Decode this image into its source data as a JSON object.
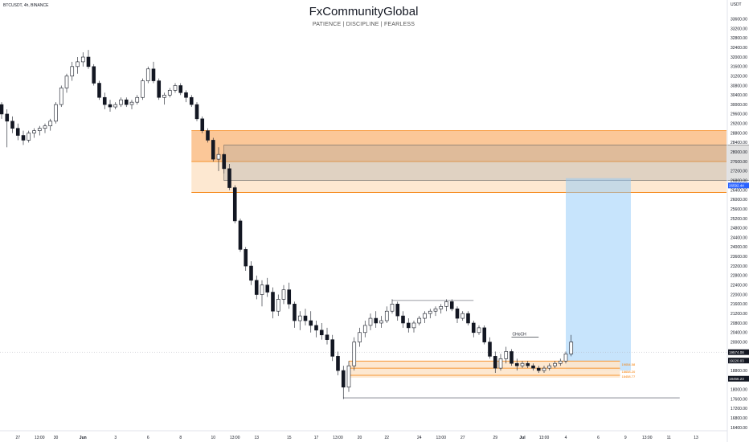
{
  "header": {
    "ticker": "BTCUSDT, 4h, BINANCE",
    "title": "FxCommunityGlobal",
    "subtitle": "PATIENCE | DISCIPLINE | FEARLESS",
    "unit": "USDT"
  },
  "colors": {
    "up": "#131722",
    "down": "#131722",
    "supply_zone": "#f9b475",
    "supply_zone_light": "#fde5cc",
    "zone_line": "#f57c00",
    "target_box": "#90caf9",
    "target_box_top": "#bbdefb",
    "grey_box": "#9e9e9e",
    "price_marker": "#2962ff"
  },
  "chart_data": {
    "type": "candlestick",
    "ylim": [
      16400,
      34200
    ],
    "yticks": [
      16400,
      16800,
      17200,
      17600,
      18000,
      18400,
      18800,
      19200,
      19600,
      20000,
      20400,
      20800,
      21200,
      21600,
      22000,
      22400,
      22800,
      23200,
      23600,
      24000,
      24400,
      24800,
      25200,
      25600,
      26000,
      26400,
      26800,
      27200,
      27600,
      28000,
      28400,
      28800,
      29200,
      29600,
      30000,
      30400,
      30800,
      31200,
      31600,
      32000,
      32400,
      32800,
      33200,
      33600
    ],
    "ytick_labels": [
      "16400.00",
      "16800.00",
      "17200.00",
      "17600.00",
      "18000.00",
      "18400.00",
      "18800.00",
      "19200.00",
      "19600.00",
      "20000.00",
      "20400.00",
      "20800.00",
      "21200.00",
      "21600.00",
      "22000.00",
      "22400.00",
      "22800.00",
      "23200.00",
      "23600.00",
      "24000.00",
      "24400.00",
      "24800.00",
      "25200.00",
      "25600.00",
      "26000.00",
      "26400.00",
      "26800.00",
      "27200.00",
      "27600.00",
      "28000.00",
      "28400.00",
      "28800.00",
      "29200.00",
      "29600.00",
      "30000.00",
      "30400.00",
      "30800.00",
      "31200.00",
      "31600.00",
      "32000.00",
      "32400.00",
      "32800.00",
      "33200.00",
      "33600.00"
    ],
    "xticks": [
      {
        "i": 3,
        "label": "27"
      },
      {
        "i": 7,
        "label": "13:00"
      },
      {
        "i": 10,
        "label": "30"
      },
      {
        "i": 15,
        "label": "Jun",
        "bold": true
      },
      {
        "i": 21,
        "label": "3"
      },
      {
        "i": 27,
        "label": "6"
      },
      {
        "i": 33,
        "label": "8"
      },
      {
        "i": 39,
        "label": "10"
      },
      {
        "i": 43,
        "label": "13:00"
      },
      {
        "i": 47,
        "label": "13"
      },
      {
        "i": 53,
        "label": "15"
      },
      {
        "i": 58,
        "label": "17"
      },
      {
        "i": 62,
        "label": "13:00"
      },
      {
        "i": 66,
        "label": "20"
      },
      {
        "i": 71,
        "label": "22"
      },
      {
        "i": 77,
        "label": "24"
      },
      {
        "i": 81,
        "label": "13:00"
      },
      {
        "i": 85,
        "label": "27"
      },
      {
        "i": 91,
        "label": "29"
      },
      {
        "i": 96,
        "label": "Jul",
        "bold": true
      },
      {
        "i": 100,
        "label": "13:00"
      },
      {
        "i": 104,
        "label": "4"
      },
      {
        "i": 110,
        "label": "6"
      },
      {
        "i": 115,
        "label": "9"
      },
      {
        "i": 119,
        "label": "13:00"
      },
      {
        "i": 123,
        "label": "11"
      },
      {
        "i": 128,
        "label": "13"
      }
    ],
    "candles": [
      [
        30000,
        30100,
        29400,
        29600
      ],
      [
        29600,
        29800,
        28200,
        29300
      ],
      [
        29300,
        29500,
        28800,
        29000
      ],
      [
        29000,
        29200,
        28500,
        28700
      ],
      [
        28700,
        28900,
        28300,
        28500
      ],
      [
        28500,
        28900,
        28400,
        28800
      ],
      [
        28800,
        29000,
        28600,
        28900
      ],
      [
        28900,
        29100,
        28700,
        29000
      ],
      [
        29000,
        29200,
        28800,
        29100
      ],
      [
        29100,
        29400,
        28900,
        29300
      ],
      [
        29300,
        30100,
        29200,
        30000
      ],
      [
        30000,
        30800,
        29900,
        30700
      ],
      [
        30700,
        31300,
        30500,
        31200
      ],
      [
        31200,
        31800,
        31000,
        31600
      ],
      [
        31600,
        32000,
        31300,
        31800
      ],
      [
        31800,
        32200,
        31600,
        32000
      ],
      [
        32000,
        32300,
        31500,
        31600
      ],
      [
        31600,
        31700,
        30800,
        30900
      ],
      [
        30900,
        31000,
        30200,
        30300
      ],
      [
        30300,
        30500,
        29800,
        30000
      ],
      [
        30000,
        30200,
        29700,
        29900
      ],
      [
        29900,
        30100,
        29800,
        30000
      ],
      [
        30000,
        30300,
        29900,
        30200
      ],
      [
        30200,
        30300,
        29900,
        30000
      ],
      [
        30000,
        30200,
        29800,
        30100
      ],
      [
        30100,
        30400,
        30000,
        30300
      ],
      [
        30300,
        31100,
        30200,
        31000
      ],
      [
        31000,
        31600,
        30900,
        31500
      ],
      [
        31500,
        31800,
        30900,
        31000
      ],
      [
        31000,
        31100,
        30200,
        30300
      ],
      [
        30300,
        30500,
        30000,
        30400
      ],
      [
        30400,
        30700,
        30300,
        30600
      ],
      [
        30600,
        30900,
        30500,
        30800
      ],
      [
        30800,
        30900,
        30400,
        30500
      ],
      [
        30500,
        30600,
        30100,
        30300
      ],
      [
        30300,
        30400,
        29900,
        30000
      ],
      [
        30000,
        30100,
        29300,
        29400
      ],
      [
        29400,
        29500,
        28800,
        28900
      ],
      [
        28900,
        29000,
        28400,
        28500
      ],
      [
        28500,
        28600,
        27600,
        27700
      ],
      [
        27700,
        28200,
        27200,
        27900
      ],
      [
        27900,
        27950,
        27100,
        27300
      ],
      [
        27300,
        27500,
        26400,
        26500
      ],
      [
        26500,
        26600,
        25000,
        25100
      ],
      [
        25100,
        25200,
        23800,
        23900
      ],
      [
        23900,
        24000,
        23000,
        23200
      ],
      [
        23200,
        23400,
        22400,
        22600
      ],
      [
        22600,
        22800,
        21800,
        22000
      ],
      [
        22000,
        22600,
        21500,
        22400
      ],
      [
        22400,
        22700,
        21900,
        22100
      ],
      [
        22100,
        22300,
        21000,
        21300
      ],
      [
        21300,
        22000,
        21100,
        21800
      ],
      [
        21800,
        22400,
        21600,
        22200
      ],
      [
        22200,
        22500,
        21400,
        21600
      ],
      [
        21600,
        21700,
        20600,
        20900
      ],
      [
        20900,
        21300,
        20500,
        21100
      ],
      [
        21100,
        21400,
        20700,
        20900
      ],
      [
        20900,
        21300,
        20400,
        20700
      ],
      [
        20700,
        20900,
        20200,
        20500
      ],
      [
        20500,
        20800,
        20100,
        20300
      ],
      [
        20300,
        20600,
        19900,
        20100
      ],
      [
        20100,
        20300,
        19200,
        19400
      ],
      [
        19400,
        19600,
        18600,
        18800
      ],
      [
        18800,
        19000,
        17600,
        18100
      ],
      [
        18100,
        19200,
        17900,
        19000
      ],
      [
        19000,
        20200,
        18800,
        20000
      ],
      [
        20000,
        20600,
        19800,
        20400
      ],
      [
        20400,
        20900,
        20200,
        20700
      ],
      [
        20700,
        21200,
        20500,
        21000
      ],
      [
        21000,
        21300,
        20600,
        20800
      ],
      [
        20800,
        21100,
        20600,
        20900
      ],
      [
        20900,
        21500,
        20800,
        21300
      ],
      [
        21300,
        21800,
        21200,
        21600
      ],
      [
        21600,
        21700,
        20900,
        21100
      ],
      [
        21100,
        21300,
        20600,
        20800
      ],
      [
        20800,
        21000,
        20400,
        20600
      ],
      [
        20600,
        20900,
        20400,
        20800
      ],
      [
        20800,
        21100,
        20700,
        21000
      ],
      [
        21000,
        21300,
        20800,
        21200
      ],
      [
        21200,
        21400,
        21000,
        21300
      ],
      [
        21300,
        21500,
        21100,
        21400
      ],
      [
        21400,
        21600,
        21200,
        21500
      ],
      [
        21500,
        21800,
        21300,
        21700
      ],
      [
        21700,
        21800,
        21300,
        21400
      ],
      [
        21400,
        21500,
        20800,
        21000
      ],
      [
        21000,
        21300,
        20900,
        21200
      ],
      [
        21200,
        21300,
        20700,
        20800
      ],
      [
        20800,
        20900,
        20200,
        20400
      ],
      [
        20400,
        20700,
        20300,
        20600
      ],
      [
        20600,
        20700,
        19900,
        20000
      ],
      [
        20000,
        20200,
        19300,
        19400
      ],
      [
        19400,
        19600,
        18700,
        18900
      ],
      [
        18900,
        19500,
        18800,
        19300
      ],
      [
        19300,
        19800,
        19100,
        19600
      ],
      [
        19600,
        19700,
        19000,
        19100
      ],
      [
        19100,
        19300,
        18800,
        19000
      ],
      [
        19000,
        19200,
        18900,
        19100
      ],
      [
        19100,
        19200,
        18900,
        19000
      ],
      [
        19000,
        19100,
        18800,
        18900
      ],
      [
        18900,
        19000,
        18700,
        18800
      ],
      [
        18800,
        19000,
        18700,
        18900
      ],
      [
        18900,
        19100,
        18800,
        19000
      ],
      [
        19000,
        19200,
        18900,
        19100
      ],
      [
        19100,
        19300,
        19000,
        19200
      ],
      [
        19200,
        19600,
        19100,
        19500
      ],
      [
        19500,
        20300,
        19400,
        20000
      ]
    ],
    "supply_zone_dark": {
      "top": 28900,
      "bottom": 27600,
      "i0": 35,
      "i1": 150
    },
    "supply_zone_light": {
      "top": 27600,
      "bottom": 26300,
      "i0": 35,
      "i1": 150
    },
    "grey_box": {
      "top": 28300,
      "bottom": 26800,
      "i0": 41,
      "i1": 139
    },
    "target_box": {
      "top": 26900,
      "bottom": 18800,
      "i0": 104,
      "i1": 116
    },
    "demand_zones": [
      {
        "top": 19200,
        "bottom": 18900,
        "label": "19054.58"
      },
      {
        "top": 18900,
        "bottom": 18600,
        "label": "18658.20"
      },
      {
        "top": 18600,
        "bottom": 18500,
        "label": "18458.77"
      }
    ],
    "demand_i0": 64,
    "demand_i1": 114,
    "low_line": {
      "y": 17650,
      "i0": 63,
      "i1": 125
    },
    "high_line": {
      "y": 21750,
      "i0": 72,
      "i1": 87
    },
    "choch": {
      "label": "CHoCH",
      "y": 20200,
      "i0": 94,
      "i1": 99
    },
    "price_markers": [
      {
        "value": 26592,
        "label": "26592.44",
        "color": "#2962ff"
      },
      {
        "value": 19574,
        "label": "19574.08",
        "color": "#131722"
      },
      {
        "value": 19220,
        "label": "19220.03",
        "color": "#131722"
      },
      {
        "value": 18456,
        "label": "18456.23",
        "color": "#131722"
      }
    ],
    "current_price": 19574
  }
}
